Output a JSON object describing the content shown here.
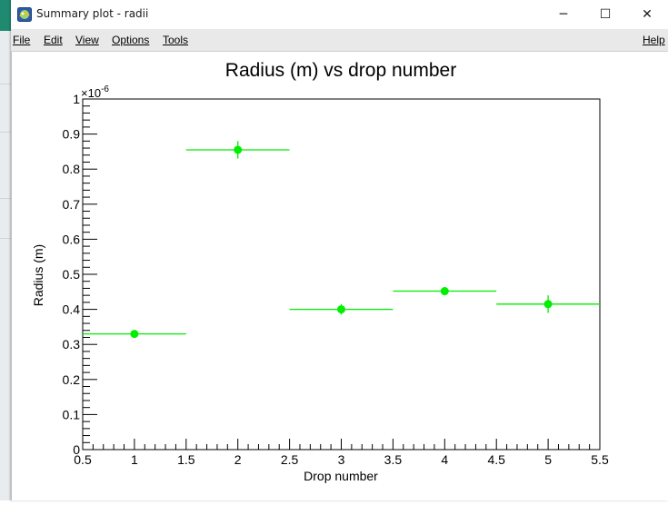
{
  "window": {
    "title": "Summary plot - radii",
    "minimize_glyph": "─",
    "maximize_glyph": "☐",
    "close_glyph": "✕",
    "icon": "root-app-icon"
  },
  "menu": {
    "file": "File",
    "edit": "Edit",
    "view": "View",
    "options": "Options",
    "tools": "Tools",
    "help": "Help"
  },
  "chart_data": {
    "type": "scatter",
    "title": "Radius (m) vs drop number",
    "xlabel": "Drop number",
    "ylabel": "Radius (m)",
    "y_exponent_label": "×10",
    "y_exponent": "-6",
    "xlim": [
      0.5,
      5.5
    ],
    "ylim": [
      0,
      1
    ],
    "x_ticks": [
      "0.5",
      "1",
      "1.5",
      "2",
      "2.5",
      "3",
      "3.5",
      "4",
      "4.5",
      "5",
      "5.5"
    ],
    "y_ticks": [
      "0",
      "0.1",
      "0.2",
      "0.3",
      "0.4",
      "0.5",
      "0.6",
      "0.7",
      "0.8",
      "0.9",
      "1"
    ],
    "marker_color": "#00ee00",
    "points": [
      {
        "x": 1,
        "y": 0.33,
        "x_err": 0.5,
        "y_err": 0.01
      },
      {
        "x": 2,
        "y": 0.855,
        "x_err": 0.5,
        "y_err": 0.025
      },
      {
        "x": 3,
        "y": 0.4,
        "x_err": 0.5,
        "y_err": 0.015
      },
      {
        "x": 4,
        "y": 0.452,
        "x_err": 0.5,
        "y_err": 0.012
      },
      {
        "x": 5,
        "y": 0.415,
        "x_err": 0.5,
        "y_err": 0.025
      }
    ],
    "grid": false
  }
}
